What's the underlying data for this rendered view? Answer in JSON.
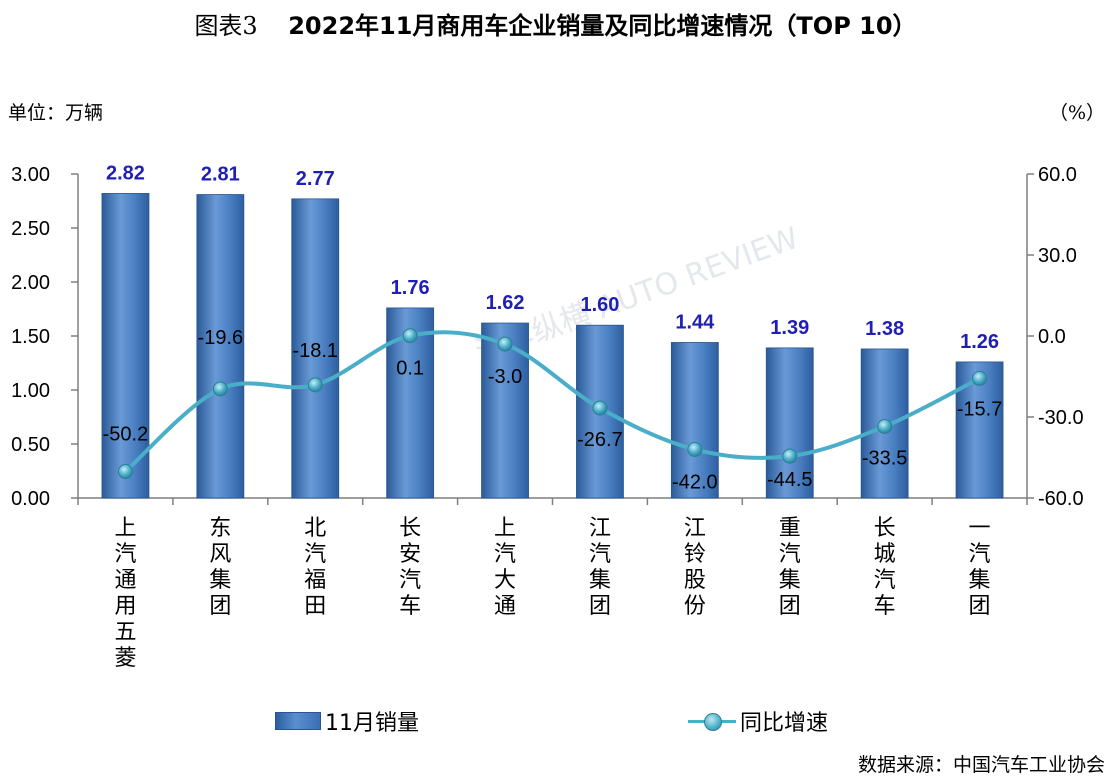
{
  "figure": {
    "fig_no": "图表3",
    "title": "2022年11月商用车企业销量及同比增速情况（TOP 10）",
    "unit_left": "单位：万辆",
    "unit_right": "（%）",
    "source": "数据来源：中国汽车工业协会",
    "watermark": "汽车纵横 AUTO REVIEW"
  },
  "legend": {
    "bar_label": "11月销量",
    "line_label": "同比增速"
  },
  "colors": {
    "bar": "#3a6fb5",
    "bar_label": "#1f1fb4",
    "line": "#4aaec9",
    "axis": "#7f7f7f"
  },
  "chart_data": {
    "type": "bar",
    "categories": [
      "上汽通用五菱",
      "东风集团",
      "北汽福田",
      "长安汽车",
      "上汽大通",
      "江汽集团",
      "江铃股份",
      "重汽集团",
      "长城汽车",
      "一汽集团"
    ],
    "series": [
      {
        "name": "11月销量",
        "type": "bar",
        "axis": "left",
        "values": [
          2.82,
          2.81,
          2.77,
          1.76,
          1.62,
          1.6,
          1.44,
          1.39,
          1.38,
          1.26
        ],
        "labels": [
          "2.82",
          "2.81",
          "2.77",
          "1.76",
          "1.62",
          "1.60",
          "1.44",
          "1.39",
          "1.38",
          "1.26"
        ]
      },
      {
        "name": "同比增速",
        "type": "line",
        "axis": "right",
        "values": [
          -50.2,
          -19.6,
          -18.1,
          0.1,
          -3.0,
          -26.7,
          -42.0,
          -44.5,
          -33.5,
          -15.7
        ],
        "labels": [
          "-50.2",
          "-19.6",
          "-18.1",
          "0.1",
          "-3.0",
          "-26.7",
          "-42.0",
          "-44.5",
          "-33.5",
          "-15.7"
        ]
      }
    ],
    "ylim_left": [
      0,
      3.0
    ],
    "yticks_left": [
      "0.00",
      "0.50",
      "1.00",
      "1.50",
      "2.00",
      "2.50",
      "3.00"
    ],
    "ylim_right": [
      -60,
      60
    ],
    "yticks_right": [
      "-60.0",
      "-30.0",
      "0.0",
      "30.0",
      "60.0"
    ],
    "legend_position": "bottom",
    "grid": false
  }
}
